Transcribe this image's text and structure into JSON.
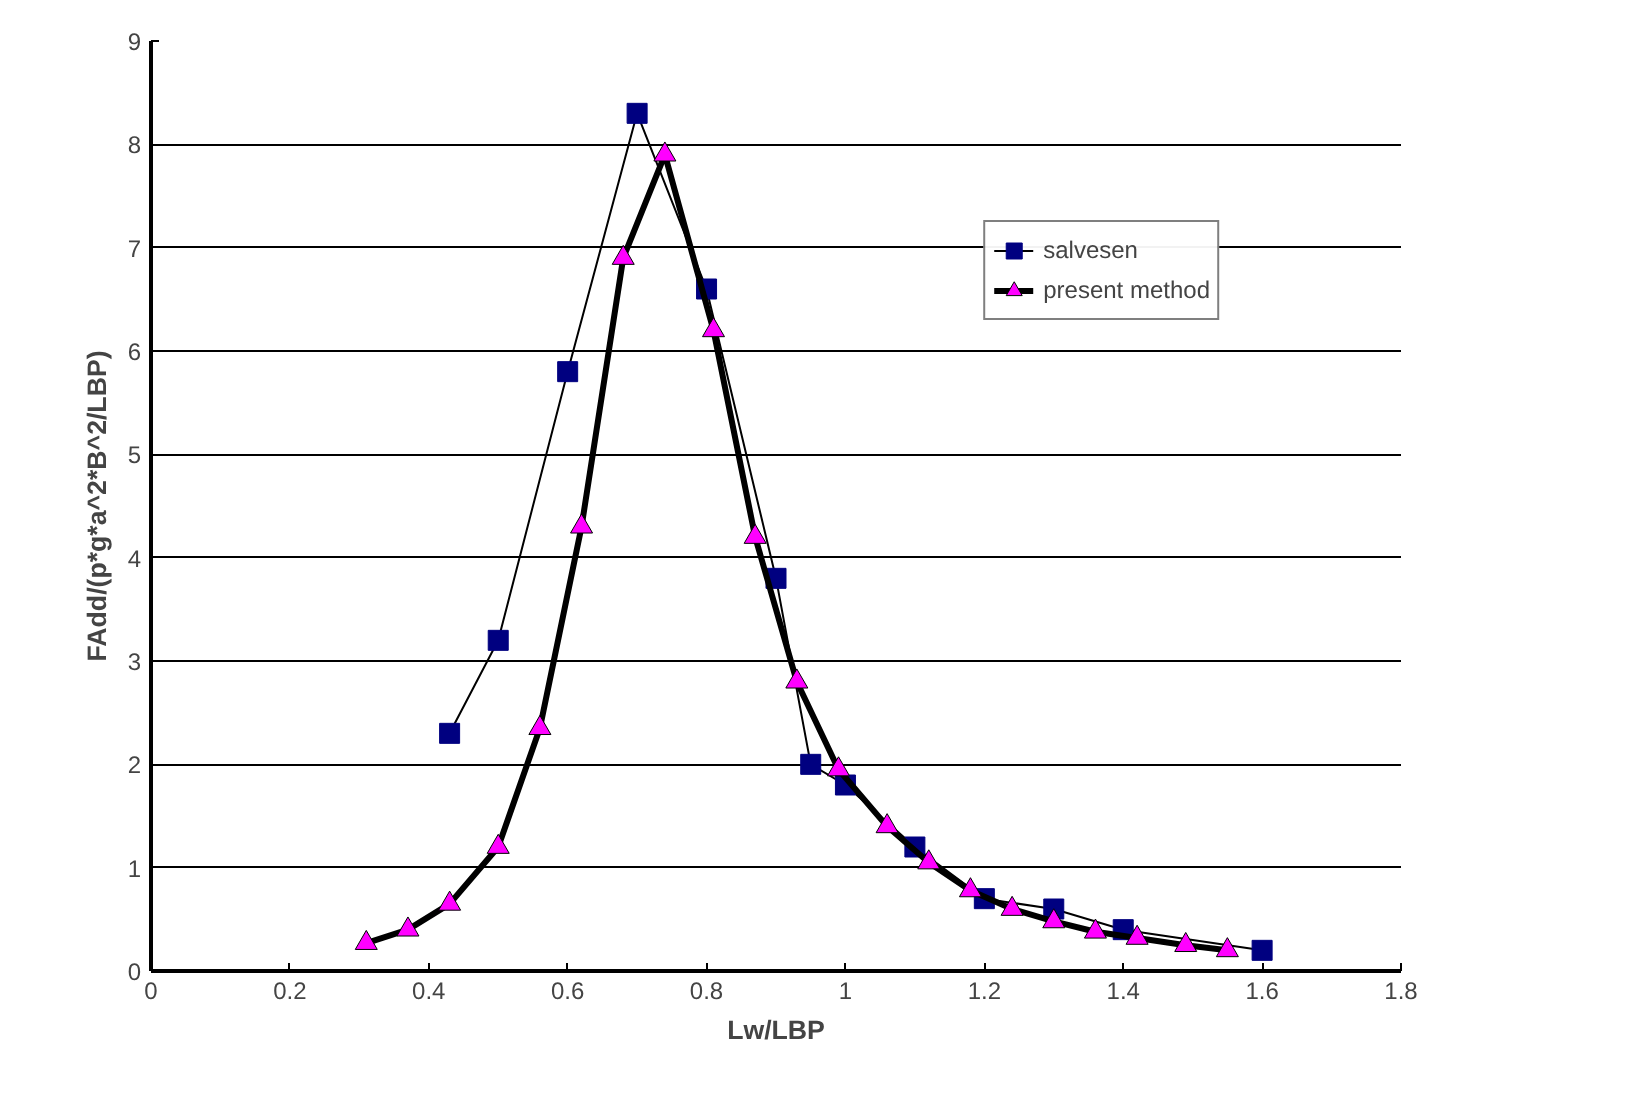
{
  "chart_data": {
    "type": "line",
    "xlabel": "Lw/LBP",
    "ylabel": "FAdd/(p*g*a^2*B^2/LBP)",
    "xlim": [
      0,
      1.8
    ],
    "ylim": [
      0,
      9
    ],
    "xticks": [
      0,
      0.2,
      0.4,
      0.6,
      0.8,
      1,
      1.2,
      1.4,
      1.6,
      1.8
    ],
    "yticks": [
      0,
      1,
      2,
      3,
      4,
      5,
      6,
      7,
      8,
      9
    ],
    "grid": "y",
    "legend": "top right",
    "series": [
      {
        "name": "salvesen",
        "color": "#000080",
        "marker": "square",
        "x": [
          0.43,
          0.5,
          0.6,
          0.7,
          0.8,
          0.9,
          0.95,
          1.0,
          1.1,
          1.2,
          1.3,
          1.4,
          1.6
        ],
        "values": [
          2.3,
          3.2,
          5.8,
          8.3,
          6.6,
          3.8,
          2.0,
          1.8,
          1.2,
          0.7,
          0.6,
          0.4,
          0.2
        ]
      },
      {
        "name": "present method",
        "color": "#ff00ff",
        "marker": "triangle",
        "x": [
          0.31,
          0.37,
          0.43,
          0.5,
          0.56,
          0.62,
          0.68,
          0.74,
          0.81,
          0.87,
          0.93,
          0.99,
          1.06,
          1.12,
          1.18,
          1.24,
          1.3,
          1.36,
          1.42,
          1.49,
          1.55
        ],
        "values": [
          0.27,
          0.4,
          0.65,
          1.2,
          2.35,
          4.3,
          6.9,
          7.9,
          6.2,
          4.2,
          2.8,
          1.95,
          1.4,
          1.05,
          0.78,
          0.6,
          0.48,
          0.38,
          0.32,
          0.25,
          0.2
        ]
      }
    ]
  }
}
